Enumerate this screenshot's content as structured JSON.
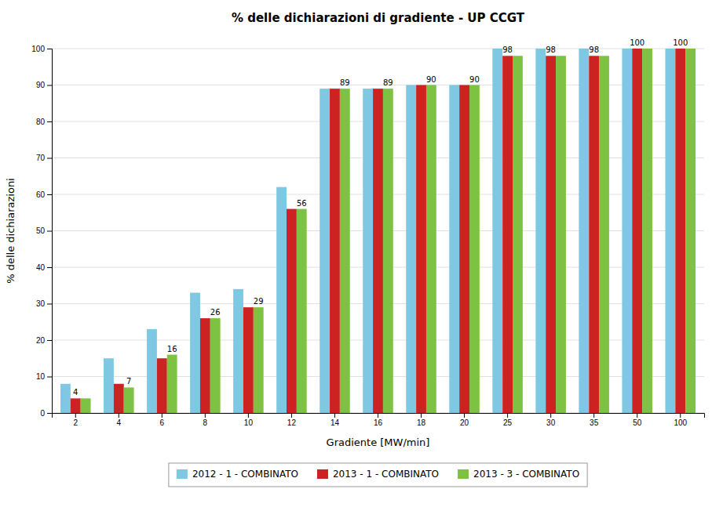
{
  "chart_data": {
    "type": "bar",
    "title": "% delle dichiarazioni di gradiente - UP CCGT",
    "xlabel": "Gradiente [MW/min]",
    "ylabel": "% delle dichiarazioni",
    "categories": [
      "2",
      "4",
      "6",
      "8",
      "10",
      "12",
      "14",
      "16",
      "18",
      "20",
      "25",
      "30",
      "35",
      "50",
      "100"
    ],
    "series": [
      {
        "name": "2012 - 1 - COMBINATO",
        "color": "#7EC8E3",
        "values": [
          8,
          15,
          23,
          33,
          34,
          62,
          89,
          89,
          90,
          90,
          100,
          100,
          100,
          100,
          100
        ]
      },
      {
        "name": "2013 - 1 - COMBINATO",
        "color": "#CC2222",
        "values": [
          4,
          8,
          15,
          26,
          29,
          56,
          89,
          89,
          90,
          90,
          98,
          98,
          98,
          100,
          100
        ]
      },
      {
        "name": "2013 - 3 - COMBINATO",
        "color": "#7DC242",
        "values": [
          4,
          7,
          16,
          26,
          29,
          56,
          89,
          89,
          90,
          90,
          98,
          98,
          98,
          100,
          100
        ]
      }
    ],
    "annotations": [
      {
        "text": "4",
        "category": "2",
        "series": "2013 - 1 - COMBINATO"
      },
      {
        "text": "7",
        "category": "4",
        "series": "2013 - 3 - COMBINATO"
      },
      {
        "text": "16",
        "category": "6",
        "series": "2013 - 3 - COMBINATO"
      },
      {
        "text": "26",
        "category": "8",
        "series": "2013 - 3 - COMBINATO"
      },
      {
        "text": "29",
        "category": "10",
        "series": "2013 - 3 - COMBINATO"
      },
      {
        "text": "56",
        "category": "12",
        "series": "2013 - 3 - COMBINATO"
      },
      {
        "text": "89",
        "category": "14",
        "series": "2013 - 3 - COMBINATO"
      },
      {
        "text": "89",
        "category": "16",
        "series": "2013 - 3 - COMBINATO"
      },
      {
        "text": "90",
        "category": "18",
        "series": "2013 - 3 - COMBINATO"
      },
      {
        "text": "90",
        "category": "20",
        "series": "2013 - 3 - COMBINATO"
      },
      {
        "text": "98",
        "category": "25",
        "series": "2013 - 1 - COMBINATO"
      },
      {
        "text": "98",
        "category": "30",
        "series": "2013 - 1 - COMBINATO"
      },
      {
        "text": "98",
        "category": "35",
        "series": "2013 - 1 - COMBINATO"
      },
      {
        "text": "100",
        "category": "50",
        "series": "2013 - 1 - COMBINATO"
      },
      {
        "text": "100",
        "category": "100",
        "series": "2013 - 1 - COMBINATO"
      }
    ],
    "ylim": [
      0,
      100
    ],
    "yticks": [
      0,
      10,
      20,
      30,
      40,
      50,
      60,
      70,
      80,
      90,
      100
    ],
    "grid": true,
    "legend": "bottom"
  }
}
